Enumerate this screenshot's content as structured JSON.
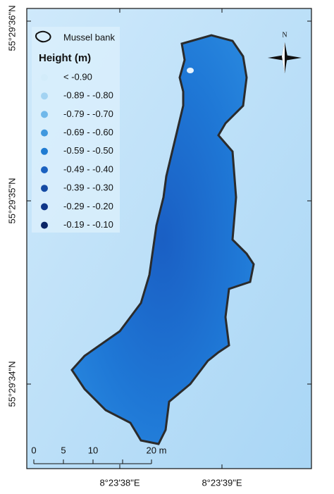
{
  "legend": {
    "feature": "Mussel bank",
    "title": "Height (m)",
    "classes": [
      {
        "label": "< -0.90",
        "color": "#d3ecfa"
      },
      {
        "label": "-0.89 - -0.80",
        "color": "#a3d3f2"
      },
      {
        "label": "-0.79 - -0.70",
        "color": "#6fb8ea"
      },
      {
        "label": "-0.69 - -0.60",
        "color": "#3f98de"
      },
      {
        "label": "-0.59 - -0.50",
        "color": "#1f7cd2"
      },
      {
        "label": "-0.49 - -0.40",
        "color": "#1a61c0"
      },
      {
        "label": "-0.39 - -0.30",
        "color": "#144aa4"
      },
      {
        "label": "-0.29 - -0.20",
        "color": "#0f3689"
      },
      {
        "label": "-0.19 - -0.10",
        "color": "#0a2566"
      }
    ]
  },
  "north_arrow": "N",
  "scale_bar": {
    "labels": [
      "0",
      "5",
      "10",
      "20 m"
    ]
  },
  "latitude_labels": [
    "55°29'36\"N",
    "55°29'35\"N",
    "55°29'34\"N"
  ],
  "longitude_labels": [
    "8°23'38\"E",
    "8°23'39\"E"
  ]
}
